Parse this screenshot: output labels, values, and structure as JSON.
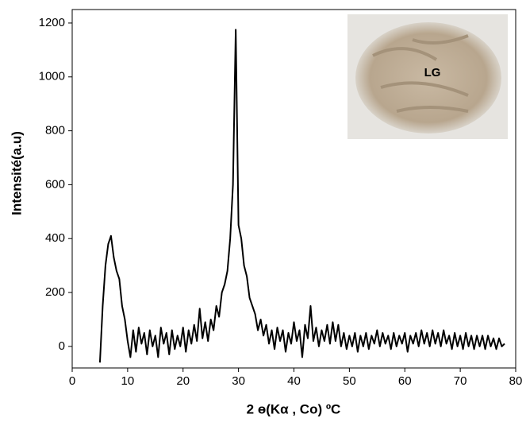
{
  "chart_data": {
    "type": "line",
    "xlabel": "2 ө(Kα , Co) ºC",
    "ylabel": "Intensité(a.u)",
    "inset_label": "LG",
    "xlim": [
      0,
      80
    ],
    "ylim": [
      -80,
      1250
    ],
    "xticks": [
      0,
      10,
      20,
      30,
      40,
      50,
      60,
      70,
      80
    ],
    "yticks": [
      0,
      200,
      400,
      600,
      800,
      1000,
      1200
    ],
    "x": [
      5,
      5.5,
      6,
      6.5,
      7,
      7.5,
      8,
      8.5,
      9,
      9.5,
      10,
      10.5,
      11,
      11.5,
      12,
      12.5,
      13,
      13.5,
      14,
      14.5,
      15,
      15.5,
      16,
      16.5,
      17,
      17.5,
      18,
      18.5,
      19,
      19.5,
      20,
      20.5,
      21,
      21.5,
      22,
      22.5,
      23,
      23.5,
      24,
      24.5,
      25,
      25.5,
      26,
      26.5,
      27,
      27.5,
      28,
      28.5,
      29,
      29.5,
      30,
      30.5,
      31,
      31.5,
      32,
      32.5,
      33,
      33.5,
      34,
      34.5,
      35,
      35.5,
      36,
      36.5,
      37,
      37.5,
      38,
      38.5,
      39,
      39.5,
      40,
      40.5,
      41,
      41.5,
      42,
      42.5,
      43,
      43.5,
      44,
      44.5,
      45,
      45.5,
      46,
      46.5,
      47,
      47.5,
      48,
      48.5,
      49,
      49.5,
      50,
      50.5,
      51,
      51.5,
      52,
      52.5,
      53,
      53.5,
      54,
      54.5,
      55,
      55.5,
      56,
      56.5,
      57,
      57.5,
      58,
      58.5,
      59,
      59.5,
      60,
      60.5,
      61,
      61.5,
      62,
      62.5,
      63,
      63.5,
      64,
      64.5,
      65,
      65.5,
      66,
      66.5,
      67,
      67.5,
      68,
      68.5,
      69,
      69.5,
      70,
      70.5,
      71,
      71.5,
      72,
      72.5,
      73,
      73.5,
      74,
      74.5,
      75,
      75.5,
      76,
      76.5,
      77,
      77.5,
      78
    ],
    "series": [
      {
        "color": "#000000",
        "values": [
          -60,
          150,
          300,
          380,
          410,
          330,
          280,
          250,
          150,
          100,
          20,
          -40,
          60,
          -20,
          70,
          10,
          50,
          -30,
          60,
          0,
          40,
          -40,
          70,
          10,
          50,
          -30,
          60,
          -10,
          40,
          0,
          70,
          -20,
          60,
          10,
          80,
          20,
          140,
          30,
          90,
          20,
          100,
          60,
          150,
          110,
          200,
          230,
          280,
          400,
          600,
          1175,
          450,
          400,
          300,
          260,
          180,
          150,
          120,
          60,
          100,
          40,
          80,
          10,
          60,
          -10,
          70,
          20,
          60,
          -20,
          50,
          10,
          90,
          20,
          60,
          -40,
          80,
          30,
          150,
          20,
          70,
          0,
          60,
          20,
          80,
          10,
          90,
          20,
          80,
          0,
          50,
          -10,
          40,
          0,
          50,
          -20,
          40,
          0,
          50,
          -10,
          40,
          10,
          60,
          0,
          50,
          10,
          40,
          -10,
          50,
          0,
          40,
          10,
          50,
          -20,
          40,
          10,
          50,
          0,
          60,
          10,
          50,
          0,
          60,
          10,
          50,
          0,
          60,
          10,
          40,
          -10,
          50,
          0,
          40,
          -10,
          50,
          0,
          40,
          -10,
          40,
          0,
          40,
          -10,
          40,
          0,
          30,
          -10,
          30,
          0,
          10
        ]
      }
    ]
  }
}
